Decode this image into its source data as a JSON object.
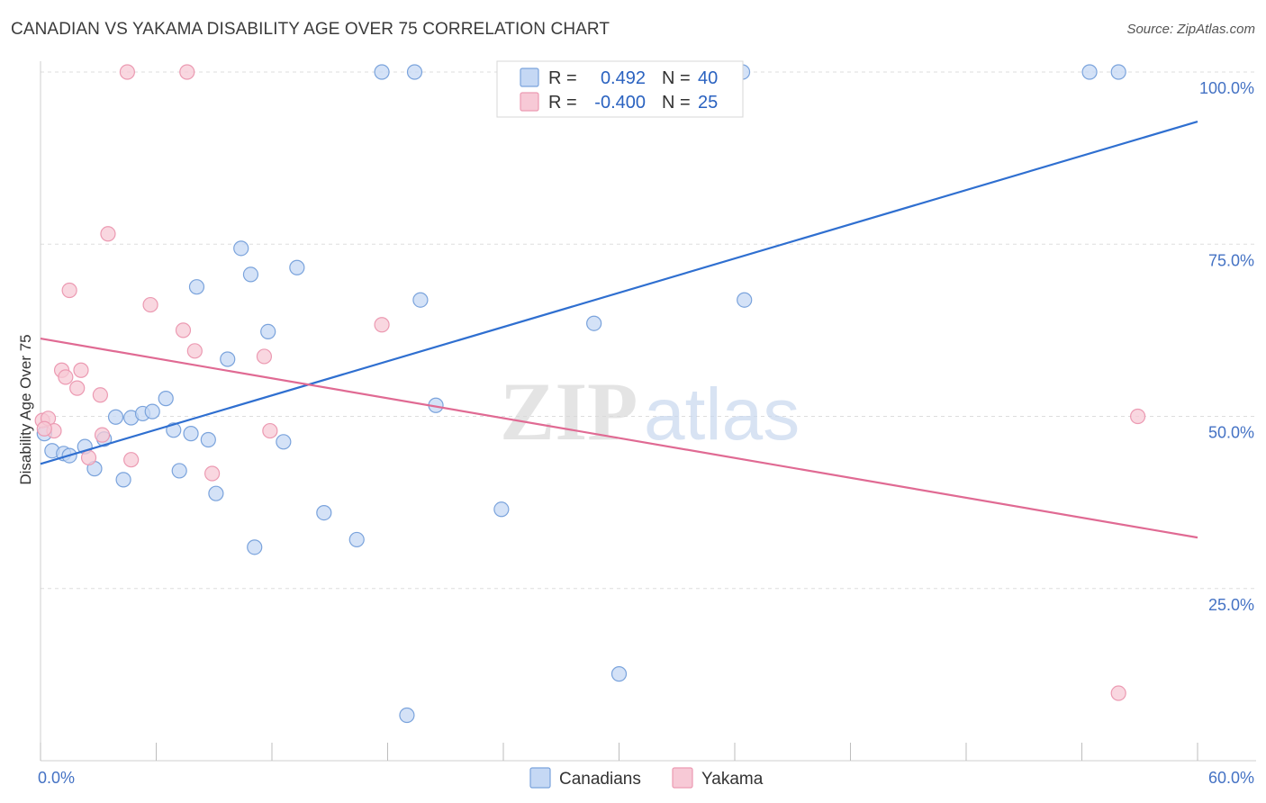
{
  "title": "CANADIAN VS YAKAMA DISABILITY AGE OVER 75 CORRELATION CHART",
  "source": "Source: ZipAtlas.com",
  "colors": {
    "canadians_fill": "#c5d8f4",
    "canadians_stroke": "#7aa3dc",
    "canadians_line": "#2f6fd0",
    "yakama_fill": "#f7c9d6",
    "yakama_stroke": "#ec9ab2",
    "yakama_line": "#e06a93",
    "tick_label": "#4472c4",
    "grid": "#dddddd"
  },
  "legend_top": {
    "rows": [
      {
        "r_label": "R =",
        "r_value": "0.492",
        "n_label": "N =",
        "n_value": "40"
      },
      {
        "r_label": "R =",
        "r_value": "-0.400",
        "n_label": "N =",
        "n_value": "25"
      }
    ]
  },
  "watermark": {
    "zip": "ZIP",
    "atlas": "atlas"
  },
  "chart_data": {
    "type": "scatter",
    "title": "CANADIAN VS YAKAMA DISABILITY AGE OVER 75 CORRELATION CHART",
    "xlabel": "",
    "ylabel": "Disability Age Over 75",
    "xlim": [
      0,
      60
    ],
    "ylim": [
      0,
      100
    ],
    "x_tick_labels": [
      "0.0%",
      "60.0%"
    ],
    "y_tick_labels": [
      "100.0%",
      "75.0%",
      "50.0%",
      "25.0%"
    ],
    "y_ticks": [
      100,
      75,
      50,
      25
    ],
    "grid": true,
    "legend": "bottom-center",
    "series": [
      {
        "name": "Canadians",
        "r": 0.492,
        "n": 40,
        "trend": [
          [
            0,
            43.1
          ],
          [
            60,
            92.8
          ]
        ],
        "points": [
          [
            0.2,
            47.5
          ],
          [
            0.6,
            45.0
          ],
          [
            1.2,
            44.6
          ],
          [
            1.5,
            44.3
          ],
          [
            2.3,
            45.6
          ],
          [
            2.8,
            42.4
          ],
          [
            3.3,
            46.7
          ],
          [
            3.9,
            49.9
          ],
          [
            4.3,
            40.8
          ],
          [
            4.7,
            49.8
          ],
          [
            5.3,
            50.4
          ],
          [
            5.8,
            50.7
          ],
          [
            6.5,
            52.6
          ],
          [
            6.9,
            48.0
          ],
          [
            7.2,
            42.1
          ],
          [
            7.8,
            47.5
          ],
          [
            8.1,
            68.8
          ],
          [
            8.7,
            46.6
          ],
          [
            9.1,
            38.8
          ],
          [
            9.7,
            58.3
          ],
          [
            10.4,
            74.4
          ],
          [
            10.9,
            70.6
          ],
          [
            11.1,
            31.0
          ],
          [
            11.8,
            62.3
          ],
          [
            12.6,
            46.3
          ],
          [
            13.3,
            71.6
          ],
          [
            14.7,
            36.0
          ],
          [
            16.4,
            32.1
          ],
          [
            17.7,
            100.0
          ],
          [
            19.0,
            6.6
          ],
          [
            19.4,
            100.0
          ],
          [
            19.7,
            66.9
          ],
          [
            20.5,
            51.6
          ],
          [
            23.9,
            36.5
          ],
          [
            28.7,
            63.5
          ],
          [
            30.0,
            12.6
          ],
          [
            36.4,
            100.0
          ],
          [
            36.5,
            66.9
          ],
          [
            54.4,
            100.0
          ],
          [
            55.9,
            100.0
          ]
        ]
      },
      {
        "name": "Yakama",
        "r": -0.4,
        "n": 25,
        "trend": [
          [
            0,
            61.3
          ],
          [
            60,
            32.4
          ]
        ],
        "points": [
          [
            0.1,
            49.4
          ],
          [
            0.4,
            49.7
          ],
          [
            0.7,
            47.9
          ],
          [
            1.1,
            56.7
          ],
          [
            1.3,
            55.7
          ],
          [
            1.5,
            68.3
          ],
          [
            1.9,
            54.1
          ],
          [
            2.1,
            56.7
          ],
          [
            2.5,
            44.0
          ],
          [
            3.1,
            53.1
          ],
          [
            3.2,
            47.3
          ],
          [
            3.5,
            76.5
          ],
          [
            4.5,
            100.0
          ],
          [
            4.7,
            43.7
          ],
          [
            5.7,
            66.2
          ],
          [
            7.4,
            62.5
          ],
          [
            7.6,
            100.0
          ],
          [
            8.0,
            59.5
          ],
          [
            8.9,
            41.7
          ],
          [
            11.6,
            58.7
          ],
          [
            11.9,
            47.9
          ],
          [
            17.7,
            63.3
          ],
          [
            55.9,
            9.8
          ],
          [
            56.9,
            50.0
          ],
          [
            0.2,
            48.2
          ]
        ]
      }
    ]
  },
  "bottom_legend": {
    "items": [
      "Canadians",
      "Yakama"
    ]
  }
}
